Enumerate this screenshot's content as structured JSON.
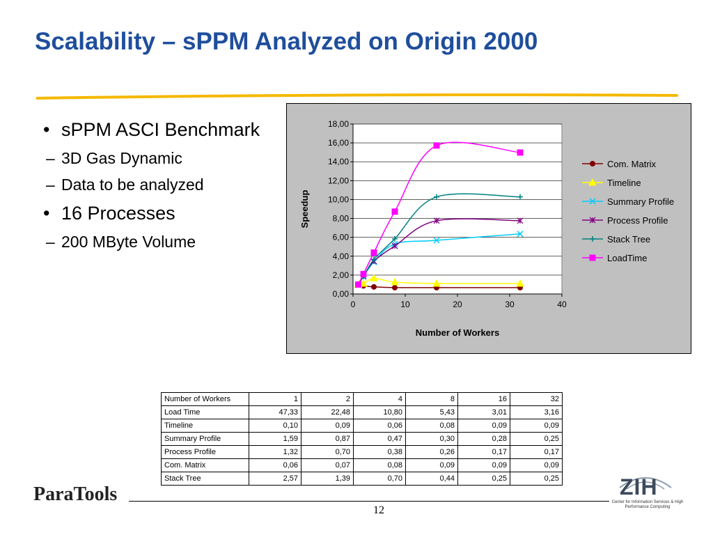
{
  "slide": {
    "title": "Scalability – sPPM Analyzed on Origin 2000",
    "page_number": "12",
    "colors": {
      "title": "#1F4E9C",
      "rule": "#F5B800"
    }
  },
  "bullets": [
    {
      "text": "sPPM ASCI Benchmark",
      "sub": [
        "3D Gas Dynamic",
        "Data to be analyzed"
      ]
    },
    {
      "text": "16 Processes",
      "sub": [
        "200 MByte Volume"
      ]
    }
  ],
  "bullet_glyph": "•",
  "dash_glyph": "–",
  "chart_data": {
    "type": "line",
    "title": "",
    "xlabel": "Number of Workers",
    "ylabel": "Speedup",
    "xlim": [
      0,
      40
    ],
    "ylim": [
      0,
      18
    ],
    "x_ticks": [
      "0",
      "10",
      "20",
      "30",
      "40"
    ],
    "y_ticks": [
      "0,00",
      "2,00",
      "4,00",
      "6,00",
      "8,00",
      "10,00",
      "12,00",
      "14,00",
      "16,00",
      "18,00"
    ],
    "legend_position": "right",
    "grid": "horizontal",
    "x": [
      1,
      2,
      4,
      8,
      16,
      32
    ],
    "series": [
      {
        "name": "Com. Matrix",
        "color": "#800000",
        "marker": "circle",
        "values": [
          1.0,
          0.86,
          0.75,
          0.67,
          0.67,
          0.67
        ]
      },
      {
        "name": "Timeline",
        "color": "#FFFF00",
        "marker": "triangle",
        "values": [
          1.0,
          1.11,
          1.67,
          1.25,
          1.11,
          1.11
        ]
      },
      {
        "name": "Summary Profile",
        "color": "#00CCFF",
        "marker": "x",
        "values": [
          1.0,
          1.83,
          3.38,
          5.3,
          5.68,
          6.36
        ]
      },
      {
        "name": "Process Profile",
        "color": "#800080",
        "marker": "star",
        "values": [
          1.0,
          1.89,
          3.47,
          5.08,
          7.76,
          7.76
        ]
      },
      {
        "name": "Stack Tree",
        "color": "#008080",
        "marker": "plus",
        "values": [
          1.0,
          1.85,
          3.67,
          5.84,
          10.28,
          10.28
        ]
      },
      {
        "name": "LoadTime",
        "color": "#FF00FF",
        "marker": "square",
        "values": [
          1.0,
          2.11,
          4.38,
          8.72,
          15.72,
          14.98
        ]
      }
    ]
  },
  "table": {
    "header": {
      "label": "Number of Workers",
      "values": [
        "1",
        "2",
        "4",
        "8",
        "16",
        "32"
      ]
    },
    "rows": [
      {
        "label": "Load Time",
        "values": [
          "47,33",
          "22,48",
          "10,80",
          "5,43",
          "3,01",
          "3,16"
        ]
      },
      {
        "label": "Timeline",
        "values": [
          "0,10",
          "0,09",
          "0,06",
          "0,08",
          "0,09",
          "0,09"
        ]
      },
      {
        "label": "Summary Profile",
        "values": [
          "1,59",
          "0,87",
          "0,47",
          "0,30",
          "0,28",
          "0,25"
        ]
      },
      {
        "label": "Process Profile",
        "values": [
          "1,32",
          "0,70",
          "0,38",
          "0,26",
          "0,17",
          "0,17"
        ]
      },
      {
        "label": "Com. Matrix",
        "values": [
          "0,06",
          "0,07",
          "0,08",
          "0,09",
          "0,09",
          "0,09"
        ]
      },
      {
        "label": "Stack Tree",
        "values": [
          "2,57",
          "1,39",
          "0,70",
          "0,44",
          "0,25",
          "0,25"
        ]
      }
    ]
  },
  "footer": {
    "logo_text": "ParaTools",
    "zih_logo": "ZIH",
    "zih_subtitle": "Center for Information Services & High Performance Computing"
  }
}
